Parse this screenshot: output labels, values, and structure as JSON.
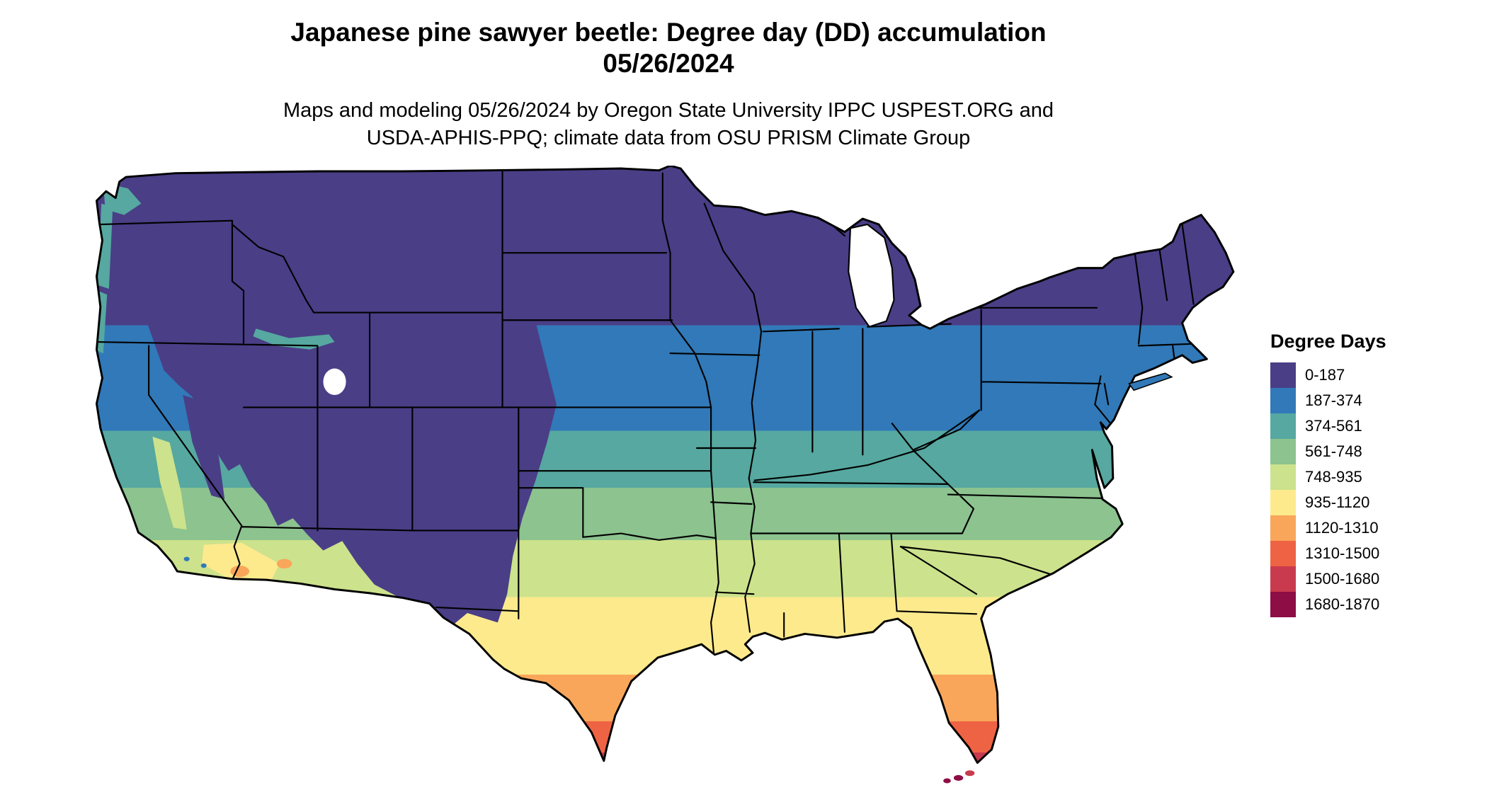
{
  "header": {
    "title_line1": "Japanese pine sawyer beetle: Degree day (DD) accumulation",
    "title_line2": "05/26/2024",
    "subtitle_line1": "Maps and modeling 05/26/2024 by Oregon State University IPPC USPEST.ORG and",
    "subtitle_line2": "USDA-APHIS-PPQ; climate data from OSU PRISM Climate Group"
  },
  "map": {
    "background_color": "#ffffff",
    "outline_color": "#000000"
  },
  "legend": {
    "title": "Degree Days",
    "bins": [
      {
        "label": "0-187",
        "color": "#4a3e87"
      },
      {
        "label": "187-374",
        "color": "#3179b8"
      },
      {
        "label": "374-561",
        "color": "#56a8a0"
      },
      {
        "label": "561-748",
        "color": "#8cc38f"
      },
      {
        "label": "748-935",
        "color": "#cce28c"
      },
      {
        "label": "935-1120",
        "color": "#fdea8d"
      },
      {
        "label": "1120-1310",
        "color": "#f9a65a"
      },
      {
        "label": "1310-1500",
        "color": "#ee6344"
      },
      {
        "label": "1500-1680",
        "color": "#c93a4e"
      },
      {
        "label": "1680-1870",
        "color": "#8e0d45"
      }
    ]
  }
}
